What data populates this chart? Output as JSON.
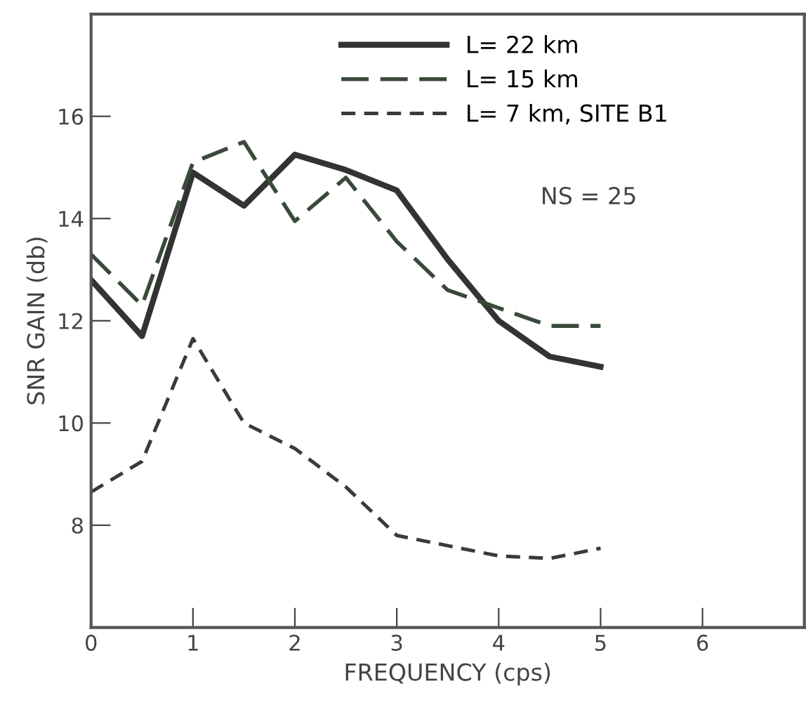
{
  "chart_data": {
    "type": "line",
    "xlabel": "FREQUENCY (cps)",
    "ylabel": "SNR GAIN (db)",
    "x": [
      0,
      0.5,
      1,
      1.5,
      2,
      2.5,
      3,
      3.5,
      4,
      4.5,
      5
    ],
    "xlim": [
      0,
      7
    ],
    "xticks": [
      0,
      1,
      2,
      3,
      4,
      5,
      6
    ],
    "ylim": [
      6,
      18
    ],
    "yticks": [
      8,
      10,
      12,
      14,
      16
    ],
    "grid": false,
    "legend": "top",
    "marker": "none",
    "annotations": [
      "NS = 25"
    ],
    "series": [
      {
        "name": "L= 22 km",
        "color": "#333333",
        "line_style": "solid",
        "values": [
          12.8,
          11.7,
          14.9,
          14.25,
          15.25,
          14.95,
          14.55,
          13.2,
          12.0,
          11.3,
          11.1
        ]
      },
      {
        "name": "L= 15 km",
        "color": "#3a4a3a",
        "line_style": "dashed",
        "values": [
          13.3,
          12.3,
          15.1,
          15.5,
          13.95,
          14.8,
          13.55,
          12.6,
          12.25,
          11.9,
          11.9
        ]
      },
      {
        "name": "L= 7 km, SITE B1",
        "color": "#3a3a3a",
        "line_style": "dotted",
        "values": [
          8.65,
          9.25,
          11.65,
          10.0,
          9.5,
          8.75,
          7.8,
          7.6,
          7.4,
          7.35,
          7.55
        ]
      }
    ]
  }
}
